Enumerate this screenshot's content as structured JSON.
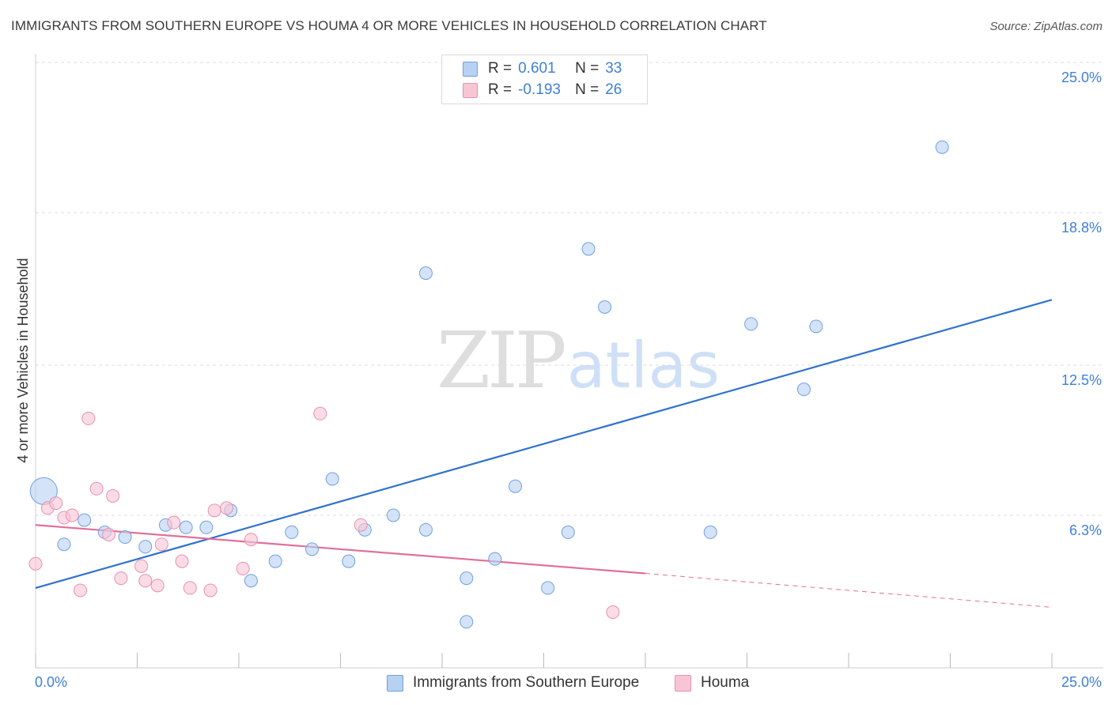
{
  "title": "IMMIGRANTS FROM SOUTHERN EUROPE VS HOUMA 4 OR MORE VEHICLES IN HOUSEHOLD CORRELATION CHART",
  "source": "Source: ZipAtlas.com",
  "watermark": {
    "zip": "ZIP",
    "atlas": "atlas"
  },
  "legend_top": [
    {
      "r_label": "R =",
      "r_value": "0.601",
      "n_label": "N =",
      "n_value": "33",
      "color": "#b8d1f3",
      "border": "#6fa0e0"
    },
    {
      "r_label": "R =",
      "r_value": "-0.193",
      "n_label": "N =",
      "n_value": "26",
      "color": "#f8c5d5",
      "border": "#e890ad"
    }
  ],
  "chart_data": {
    "type": "scatter",
    "xlabel": "",
    "ylabel": "4 or more Vehicles in Household",
    "xlim": [
      0,
      25
    ],
    "ylim": [
      0,
      25
    ],
    "x_tick_labels": [
      "0.0%",
      "25.0%"
    ],
    "y_ticks": [
      6.3,
      12.5,
      18.8,
      25.0
    ],
    "y_tick_labels": [
      "6.3%",
      "12.5%",
      "18.8%",
      "25.0%"
    ],
    "grid": true,
    "series": [
      {
        "name": "Immigrants from Southern Europe",
        "color": "#b8d1f3",
        "stroke": "#6fa0e0",
        "trend_color": "#2f72cc",
        "trend": {
          "x": [
            0,
            25
          ],
          "y": [
            3.3,
            15.2
          ]
        },
        "points": [
          {
            "x": 0.2,
            "y": 7.3,
            "big": true
          },
          {
            "x": 0.7,
            "y": 5.1
          },
          {
            "x": 1.2,
            "y": 6.1
          },
          {
            "x": 1.7,
            "y": 5.6
          },
          {
            "x": 2.2,
            "y": 5.4
          },
          {
            "x": 2.7,
            "y": 5.0
          },
          {
            "x": 3.2,
            "y": 5.9
          },
          {
            "x": 3.7,
            "y": 5.8
          },
          {
            "x": 4.2,
            "y": 5.8
          },
          {
            "x": 4.8,
            "y": 6.5
          },
          {
            "x": 5.3,
            "y": 3.6
          },
          {
            "x": 5.9,
            "y": 4.4
          },
          {
            "x": 6.3,
            "y": 5.6
          },
          {
            "x": 6.8,
            "y": 4.9
          },
          {
            "x": 7.3,
            "y": 7.8
          },
          {
            "x": 7.7,
            "y": 4.4
          },
          {
            "x": 8.1,
            "y": 5.7
          },
          {
            "x": 8.8,
            "y": 6.3
          },
          {
            "x": 9.6,
            "y": 16.3
          },
          {
            "x": 9.6,
            "y": 5.7
          },
          {
            "x": 10.6,
            "y": 3.7
          },
          {
            "x": 10.6,
            "y": 1.9
          },
          {
            "x": 11.3,
            "y": 4.5
          },
          {
            "x": 11.8,
            "y": 7.5
          },
          {
            "x": 12.6,
            "y": 3.3
          },
          {
            "x": 13.1,
            "y": 5.6
          },
          {
            "x": 13.6,
            "y": 17.3
          },
          {
            "x": 14.0,
            "y": 14.9
          },
          {
            "x": 16.6,
            "y": 5.6
          },
          {
            "x": 17.6,
            "y": 14.2
          },
          {
            "x": 18.9,
            "y": 11.5
          },
          {
            "x": 19.2,
            "y": 14.1
          },
          {
            "x": 22.3,
            "y": 21.5
          }
        ]
      },
      {
        "name": "Houma",
        "color": "#f8c5d5",
        "stroke": "#e890ad",
        "trend_color": "#e0709a",
        "trend": {
          "x": [
            0,
            15
          ],
          "y": [
            5.9,
            3.9
          ]
        },
        "trend_dashed": {
          "x": [
            15,
            25
          ],
          "y": [
            3.9,
            2.5
          ]
        },
        "points": [
          {
            "x": 0.0,
            "y": 4.3
          },
          {
            "x": 0.3,
            "y": 6.6
          },
          {
            "x": 0.5,
            "y": 6.8
          },
          {
            "x": 0.7,
            "y": 6.2
          },
          {
            "x": 0.9,
            "y": 6.3
          },
          {
            "x": 1.1,
            "y": 3.2
          },
          {
            "x": 1.3,
            "y": 10.3
          },
          {
            "x": 1.5,
            "y": 7.4
          },
          {
            "x": 1.8,
            "y": 5.5
          },
          {
            "x": 1.9,
            "y": 7.1
          },
          {
            "x": 2.1,
            "y": 3.7
          },
          {
            "x": 2.6,
            "y": 4.2
          },
          {
            "x": 2.7,
            "y": 3.6
          },
          {
            "x": 3.0,
            "y": 3.4
          },
          {
            "x": 3.1,
            "y": 5.1
          },
          {
            "x": 3.4,
            "y": 6.0
          },
          {
            "x": 3.6,
            "y": 4.4
          },
          {
            "x": 3.8,
            "y": 3.3
          },
          {
            "x": 4.3,
            "y": 3.2
          },
          {
            "x": 4.4,
            "y": 6.5
          },
          {
            "x": 4.7,
            "y": 6.6
          },
          {
            "x": 5.1,
            "y": 4.1
          },
          {
            "x": 5.3,
            "y": 5.3
          },
          {
            "x": 7.0,
            "y": 10.5
          },
          {
            "x": 8.0,
            "y": 5.9
          },
          {
            "x": 14.2,
            "y": 2.3
          }
        ]
      }
    ]
  }
}
